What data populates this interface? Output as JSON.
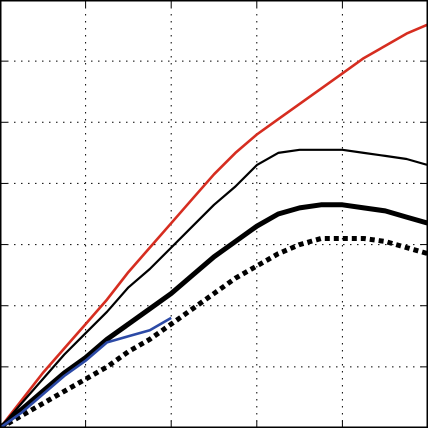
{
  "chart_data": {
    "type": "line",
    "title": "",
    "xlabel": "",
    "ylabel": "",
    "xlim": [
      0,
      5
    ],
    "ylim": [
      0,
      7
    ],
    "xticks": [
      1,
      2,
      3,
      4
    ],
    "yticks": [
      1,
      2,
      3,
      4,
      5,
      6
    ],
    "grid": true,
    "legend": "none",
    "series": [
      {
        "color": "#d62d20",
        "style": "solid",
        "weight": "medium",
        "x": [
          0,
          0.25,
          0.5,
          0.75,
          1.0,
          1.25,
          1.5,
          1.75,
          2.0,
          2.25,
          2.5,
          2.75,
          3.0,
          3.25,
          3.5,
          3.75,
          4.0,
          4.25,
          4.5,
          4.75,
          5.0
        ],
        "y": [
          0,
          0.45,
          0.9,
          1.3,
          1.7,
          2.1,
          2.55,
          2.95,
          3.35,
          3.75,
          4.15,
          4.5,
          4.8,
          5.05,
          5.3,
          5.55,
          5.8,
          6.05,
          6.25,
          6.45,
          6.6
        ]
      },
      {
        "color": "#000000",
        "style": "solid",
        "weight": "thin",
        "x": [
          0,
          0.25,
          0.5,
          0.75,
          1.0,
          1.25,
          1.5,
          1.75,
          2.0,
          2.25,
          2.5,
          2.75,
          3.0,
          3.25,
          3.5,
          3.75,
          4.0,
          4.25,
          4.5,
          4.75,
          5.0
        ],
        "y": [
          0,
          0.4,
          0.8,
          1.2,
          1.55,
          1.9,
          2.3,
          2.6,
          2.95,
          3.3,
          3.65,
          3.95,
          4.3,
          4.5,
          4.55,
          4.55,
          4.55,
          4.5,
          4.45,
          4.4,
          4.3
        ]
      },
      {
        "color": "#000000",
        "style": "solid",
        "weight": "thick",
        "x": [
          0,
          0.25,
          0.5,
          0.75,
          1.0,
          1.25,
          1.5,
          1.75,
          2.0,
          2.25,
          2.5,
          2.75,
          3.0,
          3.25,
          3.5,
          3.75,
          4.0,
          4.25,
          4.5,
          4.75,
          5.0
        ],
        "y": [
          0,
          0.3,
          0.6,
          0.9,
          1.15,
          1.45,
          1.7,
          1.95,
          2.2,
          2.5,
          2.8,
          3.05,
          3.3,
          3.5,
          3.6,
          3.65,
          3.65,
          3.6,
          3.55,
          3.45,
          3.35
        ]
      },
      {
        "color": "#000000",
        "style": "dotted",
        "weight": "thick",
        "x": [
          0,
          0.25,
          0.5,
          0.75,
          1.0,
          1.25,
          1.5,
          1.75,
          2.0,
          2.25,
          2.5,
          2.75,
          3.0,
          3.25,
          3.5,
          3.75,
          4.0,
          4.25,
          4.5,
          4.75,
          5.0
        ],
        "y": [
          0,
          0.2,
          0.4,
          0.6,
          0.8,
          1.0,
          1.25,
          1.45,
          1.7,
          1.95,
          2.2,
          2.45,
          2.65,
          2.85,
          3.0,
          3.1,
          3.1,
          3.1,
          3.05,
          2.95,
          2.85
        ]
      },
      {
        "color": "#2c4aa6",
        "style": "solid",
        "weight": "medium",
        "x": [
          0,
          0.25,
          0.5,
          0.75,
          1.0,
          1.25,
          1.5,
          1.75,
          2.0
        ],
        "y": [
          0,
          0.25,
          0.55,
          0.85,
          1.1,
          1.4,
          1.5,
          1.6,
          1.8
        ]
      }
    ]
  }
}
